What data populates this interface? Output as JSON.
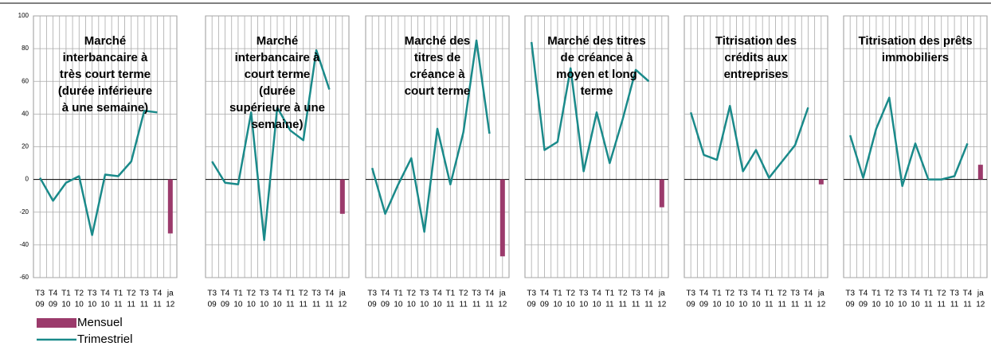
{
  "chart_data": [
    {
      "type": "combo",
      "title": [
        "Marché",
        "interbancaire à",
        "très court terme",
        "(durée inférieure",
        "à une semaine)"
      ],
      "categories": [
        "T3",
        "T4",
        "T1",
        "T2",
        "T3",
        "T4",
        "T1",
        "T2",
        "T3",
        "T4",
        "ja"
      ],
      "category_years": [
        "09",
        "09",
        "10",
        "10",
        "10",
        "10",
        "11",
        "11",
        "11",
        "11",
        "12"
      ],
      "series": [
        {
          "name": "Mensuel",
          "type": "bar",
          "color": "#9b3a6b",
          "values": [
            null,
            null,
            null,
            null,
            null,
            null,
            null,
            null,
            null,
            null,
            -33
          ]
        },
        {
          "name": "Trimestriel",
          "type": "line",
          "color": "#1a8a8a",
          "values": [
            1,
            -13,
            -2,
            2,
            -34,
            3,
            2,
            11,
            42,
            41,
            null
          ]
        }
      ],
      "ylim": [
        -60,
        100
      ],
      "yticks": [
        -60,
        -40,
        -20,
        0,
        20,
        40,
        60,
        80,
        100
      ],
      "ytick_labels": true,
      "grid": true
    },
    {
      "type": "combo",
      "title": [
        "Marché",
        "interbancaire à",
        "court terme",
        "(durée",
        "supérieure à une",
        "semaine)"
      ],
      "categories": [
        "T3",
        "T4",
        "T1",
        "T2",
        "T3",
        "T4",
        "T1",
        "T2",
        "T3",
        "T4",
        "ja"
      ],
      "category_years": [
        "09",
        "09",
        "10",
        "10",
        "10",
        "10",
        "11",
        "11",
        "11",
        "11",
        "12"
      ],
      "series": [
        {
          "type": "bar",
          "color": "#9b3a6b",
          "values": [
            null,
            null,
            null,
            null,
            null,
            null,
            null,
            null,
            null,
            null,
            -21
          ]
        },
        {
          "type": "line",
          "color": "#1a8a8a",
          "values": [
            11,
            -2,
            -3,
            41,
            -37,
            44,
            30,
            24,
            79,
            55,
            null
          ]
        }
      ],
      "ylim": [
        -60,
        100
      ],
      "yticks": [
        -60,
        -40,
        -20,
        0,
        20,
        40,
        60,
        80,
        100
      ],
      "ytick_labels": false,
      "grid": true
    },
    {
      "type": "combo",
      "title": [
        "Marché des",
        "titres de",
        "créance à",
        "court terme"
      ],
      "categories": [
        "T3",
        "T4",
        "T1",
        "T2",
        "T3",
        "T4",
        "T1",
        "T2",
        "T3",
        "T4",
        "ja"
      ],
      "category_years": [
        "09",
        "09",
        "10",
        "10",
        "10",
        "10",
        "11",
        "11",
        "11",
        "11",
        "12"
      ],
      "series": [
        {
          "type": "bar",
          "color": "#9b3a6b",
          "values": [
            null,
            null,
            null,
            null,
            null,
            null,
            null,
            null,
            null,
            null,
            -47
          ]
        },
        {
          "type": "line",
          "color": "#1a8a8a",
          "values": [
            7,
            -21,
            -3,
            13,
            -32,
            31,
            -3,
            29,
            85,
            28,
            null
          ]
        }
      ],
      "ylim": [
        -60,
        100
      ],
      "yticks": [
        -60,
        -40,
        -20,
        0,
        20,
        40,
        60,
        80,
        100
      ],
      "ytick_labels": false,
      "grid": true
    },
    {
      "type": "combo",
      "title": [
        "Marché des titres",
        "de créance à",
        "moyen et long",
        "terme"
      ],
      "categories": [
        "T3",
        "T4",
        "T1",
        "T2",
        "T3",
        "T4",
        "T1",
        "T2",
        "T3",
        "T4",
        "ja"
      ],
      "category_years": [
        "09",
        "09",
        "10",
        "10",
        "10",
        "10",
        "11",
        "11",
        "11",
        "11",
        "12"
      ],
      "series": [
        {
          "type": "bar",
          "color": "#9b3a6b",
          "values": [
            null,
            null,
            null,
            null,
            null,
            null,
            null,
            null,
            null,
            null,
            -17
          ]
        },
        {
          "type": "line",
          "color": "#1a8a8a",
          "values": [
            84,
            18,
            23,
            68,
            5,
            41,
            10,
            37,
            67,
            60,
            null
          ]
        }
      ],
      "ylim": [
        -60,
        100
      ],
      "yticks": [
        -60,
        -40,
        -20,
        0,
        20,
        40,
        60,
        80,
        100
      ],
      "ytick_labels": false,
      "grid": true
    },
    {
      "type": "combo",
      "title": [
        "Titrisation des",
        "crédits aux",
        "entreprises"
      ],
      "categories": [
        "T3",
        "T4",
        "T1",
        "T2",
        "T3",
        "T4",
        "T1",
        "T2",
        "T3",
        "T4",
        "ja"
      ],
      "category_years": [
        "09",
        "09",
        "10",
        "10",
        "10",
        "10",
        "11",
        "11",
        "11",
        "11",
        "12"
      ],
      "series": [
        {
          "type": "bar",
          "color": "#9b3a6b",
          "values": [
            null,
            null,
            null,
            null,
            null,
            null,
            null,
            null,
            null,
            null,
            -3
          ]
        },
        {
          "type": "line",
          "color": "#1a8a8a",
          "values": [
            41,
            15,
            12,
            45,
            5,
            18,
            1,
            11,
            21,
            44,
            null
          ]
        }
      ],
      "ylim": [
        -60,
        100
      ],
      "yticks": [
        -60,
        -40,
        -20,
        0,
        20,
        40,
        60,
        80,
        100
      ],
      "ytick_labels": false,
      "grid": true
    },
    {
      "type": "combo",
      "title": [
        "Titrisation des prêts",
        "immobiliers"
      ],
      "categories": [
        "T3",
        "T4",
        "T1",
        "T2",
        "T3",
        "T4",
        "T1",
        "T2",
        "T3",
        "T4",
        "ja"
      ],
      "category_years": [
        "09",
        "09",
        "10",
        "10",
        "10",
        "10",
        "11",
        "11",
        "11",
        "11",
        "12"
      ],
      "series": [
        {
          "type": "bar",
          "color": "#9b3a6b",
          "values": [
            null,
            null,
            null,
            null,
            null,
            null,
            null,
            null,
            null,
            null,
            9
          ]
        },
        {
          "type": "line",
          "color": "#1a8a8a",
          "values": [
            27,
            1,
            31,
            50,
            -4,
            22,
            0,
            0,
            2,
            22,
            null
          ]
        }
      ],
      "ylim": [
        -60,
        100
      ],
      "yticks": [
        -60,
        -40,
        -20,
        0,
        20,
        40,
        60,
        80,
        100
      ],
      "ytick_labels": false,
      "grid": true
    }
  ]
}
